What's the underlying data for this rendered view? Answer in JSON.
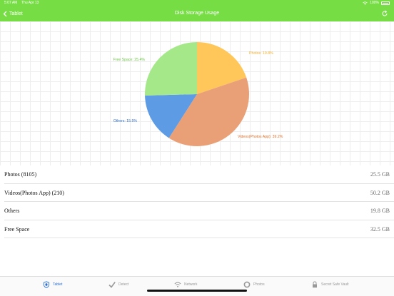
{
  "status_bar": {
    "time": "5:07 AM",
    "date": "Thu Apr 13",
    "battery": "100%"
  },
  "nav": {
    "back_label": "Tablet",
    "title": "Disk Storage Usage"
  },
  "chart_data": {
    "type": "pie",
    "slices": [
      {
        "label": "Photos: 19.8%",
        "value": 19.8,
        "color": "#FFC75A"
      },
      {
        "label": "Videos(Photos App): 39.2%",
        "value": 39.2,
        "color": "#EAA077"
      },
      {
        "label": "Others: 15.5%",
        "value": 15.5,
        "color": "#5D9CE4"
      },
      {
        "label": "Free Space: 25.4%",
        "value": 25.4,
        "color": "#A5E889"
      }
    ]
  },
  "list": [
    {
      "name": "Photos (8105)",
      "size": "25.5 GB"
    },
    {
      "name": "Videos(Photos App) (210)",
      "size": "50.2 GB"
    },
    {
      "name": "Others",
      "size": "19.8 GB"
    },
    {
      "name": "Free Space",
      "size": "32.5 GB"
    }
  ],
  "tabs": [
    {
      "label": "Tablet",
      "icon": "shield-icon",
      "active": true
    },
    {
      "label": "Detect",
      "icon": "checkmark-icon",
      "active": false
    },
    {
      "label": "Network",
      "icon": "wifi-icon",
      "active": false
    },
    {
      "label": "Photos",
      "icon": "photos-circle-icon",
      "active": false
    },
    {
      "label": "Secret Safe Vault",
      "icon": "lock-icon",
      "active": false
    }
  ],
  "colors": {
    "header": "#77DD44",
    "active_tab": "#2A6FD6",
    "label_photos": "#F2B02E",
    "label_videos": "#E0702C",
    "label_others": "#2F6FC9",
    "label_free": "#6CC845"
  }
}
